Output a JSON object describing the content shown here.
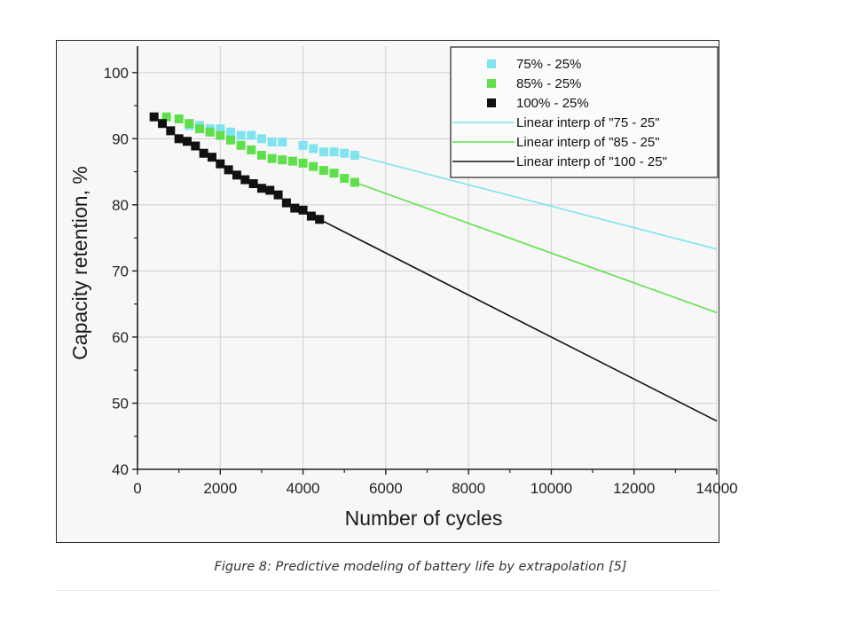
{
  "caption": "Figure 8: Predictive modeling of battery life by extrapolation [5]",
  "chart_data": {
    "type": "scatter",
    "xlabel": "Number of cycles",
    "ylabel": "Capacity retention, %",
    "xlim": [
      0,
      14000
    ],
    "ylim": [
      40,
      104
    ],
    "xticks": [
      0,
      2000,
      4000,
      6000,
      8000,
      10000,
      12000,
      14000
    ],
    "yticks": [
      40,
      50,
      60,
      70,
      80,
      90,
      100
    ],
    "grid": true,
    "legend_position": "top-right",
    "series": [
      {
        "name": "75% - 25%",
        "kind": "markers",
        "color": "#7fe3f0",
        "x": [
          1250,
          1500,
          1750,
          2000,
          2250,
          2500,
          2750,
          3000,
          3250,
          3500,
          4000,
          4250,
          4500,
          4750,
          5000,
          5250
        ],
        "y": [
          92.0,
          92.0,
          91.5,
          91.5,
          91.0,
          90.5,
          90.5,
          90.0,
          89.5,
          89.5,
          89.0,
          88.5,
          88.0,
          88.0,
          87.8,
          87.5
        ]
      },
      {
        "name": "85% - 25%",
        "kind": "markers",
        "color": "#5ee04a",
        "x": [
          700,
          1000,
          1250,
          1500,
          1750,
          2000,
          2250,
          2500,
          2750,
          3000,
          3250,
          3500,
          3750,
          4000,
          4250,
          4500,
          4750,
          5000,
          5250
        ],
        "y": [
          93.3,
          93.0,
          92.3,
          91.5,
          91.0,
          90.5,
          89.8,
          89.0,
          88.3,
          87.5,
          87.0,
          86.8,
          86.6,
          86.3,
          85.8,
          85.2,
          84.8,
          84.0,
          83.4
        ]
      },
      {
        "name": "100% - 25%",
        "kind": "markers",
        "color": "#111111",
        "x": [
          400,
          600,
          800,
          1000,
          1200,
          1400,
          1600,
          1800,
          2000,
          2200,
          2400,
          2600,
          2800,
          3000,
          3200,
          3400,
          3600,
          3800,
          4000,
          4200,
          4400
        ],
        "y": [
          93.3,
          92.3,
          91.2,
          90.0,
          89.6,
          88.9,
          87.8,
          87.2,
          86.2,
          85.3,
          84.5,
          83.8,
          83.2,
          82.5,
          82.2,
          81.5,
          80.3,
          79.5,
          79.2,
          78.3,
          77.8
        ]
      },
      {
        "name": "Linear interp of \"75 - 25\"",
        "kind": "line",
        "color": "#7fe3f0",
        "x": [
          5250,
          14000
        ],
        "y": [
          87.5,
          73.3
        ]
      },
      {
        "name": "Linear interp of \"85 - 25\"",
        "kind": "line",
        "color": "#5ee04a",
        "x": [
          5250,
          14000
        ],
        "y": [
          83.4,
          63.7
        ]
      },
      {
        "name": "Linear interp of \"100 - 25\"",
        "kind": "line",
        "color": "#111111",
        "x": [
          4400,
          14000
        ],
        "y": [
          77.8,
          47.3
        ]
      }
    ]
  }
}
